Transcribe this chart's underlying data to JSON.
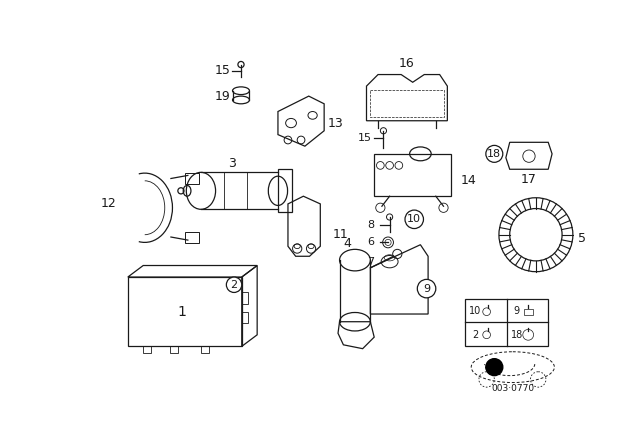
{
  "background_color": "#ffffff",
  "line_color": "#1a1a1a",
  "diagram_code": "003·0770",
  "fig_width": 6.4,
  "fig_height": 4.48,
  "dpi": 100
}
